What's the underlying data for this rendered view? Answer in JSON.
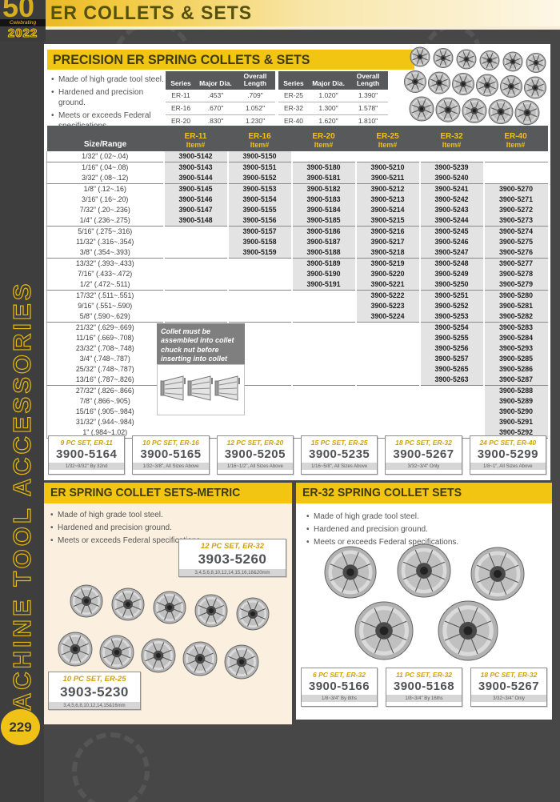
{
  "page": {
    "title": "ER COLLETS & SETS",
    "sidebar_text": "MACHINE TOOL ACCESSORIES",
    "page_number": "229",
    "badge": {
      "fifty": "50",
      "celebrating": "Celebrating",
      "year": "2022"
    },
    "colors": {
      "accent": "#f3c513",
      "header_gray": "#58595b",
      "cell_gray": "#e3e3e3",
      "dark_bg": "#474747",
      "cream": "#fbf0df",
      "gold_label": "#cfa10c"
    }
  },
  "precision_section": {
    "title": "PRECISION ER SPRING COLLETS & SETS",
    "bullets": [
      "Made of high grade tool steel.",
      "Hardened and precision ground.",
      "Meets or exceeds Federal specifications."
    ],
    "spec_tables": [
      {
        "headers": [
          "Series",
          "Major Dia.",
          "Overall Length"
        ],
        "rows": [
          [
            "ER-11",
            ".453\"",
            ".709\""
          ],
          [
            "ER-16",
            ".670\"",
            "1.052\""
          ],
          [
            "ER-20",
            ".830\"",
            "1.230\""
          ]
        ]
      },
      {
        "headers": [
          "Series",
          "Major Dia.",
          "Overall Length"
        ],
        "rows": [
          [
            "ER-25",
            "1.020\"",
            "1.390\""
          ],
          [
            "ER-32",
            "1.300\"",
            "1.578\""
          ],
          [
            "ER-40",
            "1.620\"",
            "1.810\""
          ]
        ]
      }
    ],
    "main_table": {
      "size_header": "Size/Range",
      "item_label": "Item#",
      "series": [
        "ER-11",
        "ER-16",
        "ER-20",
        "ER-25",
        "ER-32",
        "ER-40"
      ],
      "rows": [
        {
          "size": "1/32\" (.02~.04)",
          "items": [
            "3900-5142",
            "3900-5150",
            "",
            "",
            "",
            ""
          ],
          "group_end": true
        },
        {
          "size": "1/16\" (.04~.08)",
          "items": [
            "3900-5143",
            "3900-5151",
            "3900-5180",
            "3900-5210",
            "3900-5239",
            ""
          ]
        },
        {
          "size": "3/32\" (.08~.12)",
          "items": [
            "3900-5144",
            "3900-5152",
            "3900-5181",
            "3900-5211",
            "3900-5240",
            ""
          ],
          "group_end": true
        },
        {
          "size": "1/8\" (.12~.16)",
          "items": [
            "3900-5145",
            "3900-5153",
            "3900-5182",
            "3900-5212",
            "3900-5241",
            "3900-5270"
          ]
        },
        {
          "size": "3/16\" (.16~.20)",
          "items": [
            "3900-5146",
            "3900-5154",
            "3900-5183",
            "3900-5213",
            "3900-5242",
            "3900-5271"
          ]
        },
        {
          "size": "7/32\" (.20~.236)",
          "items": [
            "3900-5147",
            "3900-5155",
            "3900-5184",
            "3900-5214",
            "3900-5243",
            "3900-5272"
          ]
        },
        {
          "size": "1/4\" (.236~.275)",
          "items": [
            "3900-5148",
            "3900-5156",
            "3900-5185",
            "3900-5215",
            "3900-5244",
            "3900-5273"
          ],
          "group_end": true
        },
        {
          "size": "5/16\" (.275~.316)",
          "items": [
            "",
            "3900-5157",
            "3900-5186",
            "3900-5216",
            "3900-5245",
            "3900-5274"
          ]
        },
        {
          "size": "11/32\" (.316~.354)",
          "items": [
            "",
            "3900-5158",
            "3900-5187",
            "3900-5217",
            "3900-5246",
            "3900-5275"
          ]
        },
        {
          "size": "3/8\" (.354~.393)",
          "items": [
            "",
            "3900-5159",
            "3900-5188",
            "3900-5218",
            "3900-5247",
            "3900-5276"
          ],
          "group_end": true
        },
        {
          "size": "13/32\" (.393~.433)",
          "items": [
            "",
            "",
            "3900-5189",
            "3900-5219",
            "3900-5248",
            "3900-5277"
          ]
        },
        {
          "size": "7/16\" (.433~.472)",
          "items": [
            "",
            "",
            "3900-5190",
            "3900-5220",
            "3900-5249",
            "3900-5278"
          ]
        },
        {
          "size": "1/2\" (.472~.511)",
          "items": [
            "",
            "",
            "3900-5191",
            "3900-5221",
            "3900-5250",
            "3900-5279"
          ],
          "group_end": true
        },
        {
          "size": "17/32\" (.511~.551)",
          "items": [
            "",
            "",
            "",
            "3900-5222",
            "3900-5251",
            "3900-5280"
          ]
        },
        {
          "size": "9/16\" (.551~.590)",
          "items": [
            "",
            "",
            "",
            "3900-5223",
            "3900-5252",
            "3900-5281"
          ]
        },
        {
          "size": "5/8\" (.590~.629)",
          "items": [
            "",
            "",
            "",
            "3900-5224",
            "3900-5253",
            "3900-5282"
          ],
          "group_end": true
        },
        {
          "size": "21/32\" (.629~.669)",
          "items": [
            "",
            "",
            "",
            "",
            "3900-5254",
            "3900-5283"
          ]
        },
        {
          "size": "11/16\" (.669~.708)",
          "items": [
            "",
            "",
            "",
            "",
            "3900-5255",
            "3900-5284"
          ]
        },
        {
          "size": "23/32\" (.708~.748)",
          "items": [
            "",
            "",
            "",
            "",
            "3900-5256",
            "3900-5293"
          ]
        },
        {
          "size": "3/4\" (.748~.787)",
          "items": [
            "",
            "",
            "",
            "",
            "3900-5257",
            "3900-5285"
          ]
        },
        {
          "size": "25/32\" (.748~.787)",
          "items": [
            "",
            "",
            "",
            "",
            "3900-5265",
            "3900-5286"
          ]
        },
        {
          "size": "13/16\" (.787~.826)",
          "items": [
            "",
            "",
            "",
            "",
            "3900-5263",
            "3900-5287"
          ],
          "group_end": true
        },
        {
          "size": "27/32\" (.826~.866)",
          "items": [
            "",
            "",
            "",
            "",
            "",
            "3900-5288"
          ]
        },
        {
          "size": "7/8\" (.866~.905)",
          "items": [
            "",
            "",
            "",
            "",
            "",
            "3900-5289"
          ]
        },
        {
          "size": "15/16\" (.905~.984)",
          "items": [
            "",
            "",
            "",
            "",
            "",
            "3900-5290"
          ]
        },
        {
          "size": "31/32\" (.944~.984)",
          "items": [
            "",
            "",
            "",
            "",
            "",
            "3900-5291"
          ]
        },
        {
          "size": "1\" (.984~1.02)",
          "items": [
            "",
            "",
            "",
            "",
            "",
            "3900-5292"
          ]
        }
      ]
    },
    "note": "Collet must be assembled into collet chuck nut before inserting into collet chuck !",
    "sets": [
      {
        "label": "9 PC SET, ER-11",
        "item": "3900-5164",
        "range": "1/32~9/32\" By 32nd"
      },
      {
        "label": "10 PC SET, ER-16",
        "item": "3900-5165",
        "range": "1/32~3/8\", All Sizes Above"
      },
      {
        "label": "12 PC SET, ER-20",
        "item": "3900-5205",
        "range": "1/16~1/2\", All Sizes Above"
      },
      {
        "label": "15 PC SET, ER-25",
        "item": "3900-5235",
        "range": "1/16~5/8\", All Sizes Above"
      },
      {
        "label": "18 PC SET, ER-32",
        "item": "3900-5267",
        "range": "3/32~3/4\" Only"
      },
      {
        "label": "24 PC SET, ER-40",
        "item": "3900-5299",
        "range": "1/8~1\", All Sizes Above"
      }
    ]
  },
  "metric_section": {
    "title": "ER SPRING COLLET SETS-METRIC",
    "bullets": [
      "Made of high grade tool steel.",
      "Hardened and precision ground.",
      "Meets or exceeds Federal specifications."
    ],
    "sets": [
      {
        "label": "12 PC SET, ER-32",
        "item": "3903-5260",
        "range": "3,4,5,6,8,10,12,14,15,16,18&20mm"
      },
      {
        "label": "10 PC SET, ER-25",
        "item": "3903-5230",
        "range": "3,4,5,6,8,10,12,14,15&16mm"
      }
    ]
  },
  "er32_section": {
    "title": "ER-32 SPRING COLLET SETS",
    "bullets": [
      "Made of high grade tool steel.",
      "Hardened and precision ground.",
      "Meets or exceeds Federal specifications."
    ],
    "sets": [
      {
        "label": "6 PC SET, ER-32",
        "item": "3900-5166",
        "range": "1/8~3/4\" By 8ths"
      },
      {
        "label": "11 PC SET, ER-32",
        "item": "3900-5168",
        "range": "1/8~3/4\" By 16ths"
      },
      {
        "label": "18 PC SET, ER-32",
        "item": "3900-5267",
        "range": "3/32~3/4\" Only"
      }
    ]
  }
}
